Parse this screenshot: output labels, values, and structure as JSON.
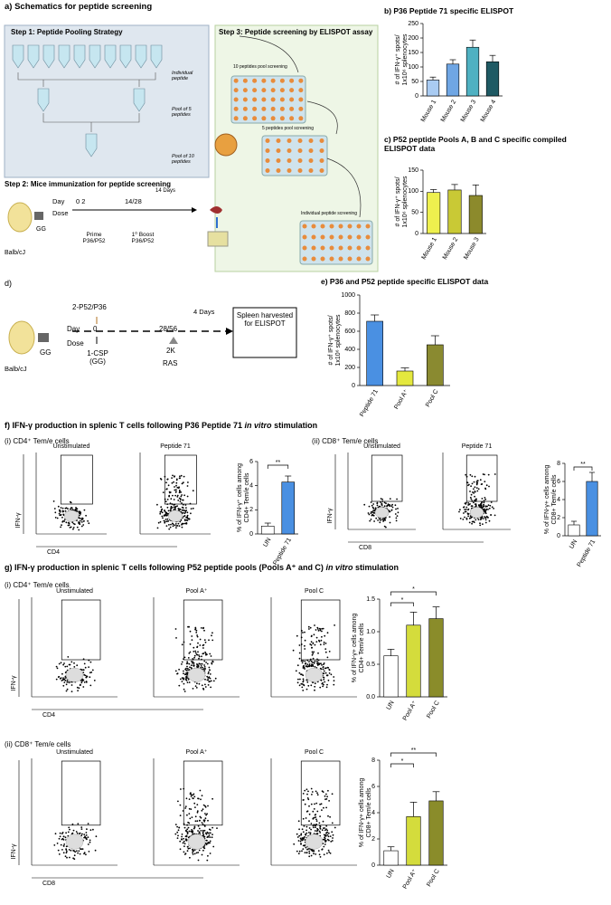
{
  "panels": {
    "a": {
      "title": "a) Schematics for peptide screening",
      "step1": "Step 1:  Peptide Pooling Strategy",
      "individual": "Individual peptide",
      "pool5": "Pool of 5 peptides",
      "pool10": "Pool of 10 peptides",
      "step2": "Step 2: Mice immunization for peptide screening",
      "day": "Day",
      "dose": "Dose",
      "days_0_2": "0 2",
      "day_boost": "14/28",
      "interval": "14 Days",
      "prime": "Prime P36/P52",
      "boost": "1⁰ Boost P36/P52",
      "mouse": "Balb/cJ",
      "gg": "GG",
      "step3": "Step 3: Peptide screening by ELISPOT assay",
      "screen10": "10 peptides pool screening",
      "screen5": "5 peptides pool screening",
      "screen_ind": "Individual peptide screening"
    },
    "d": {
      "title": "d)",
      "peptide": "2-P52/P36",
      "day": "Day",
      "day0": "0",
      "dose": "Dose",
      "csp": "1-CSP (GG)",
      "day_ras": "28/56",
      "interval": "4 Days",
      "dose_ras": "2K",
      "ras": "RAS",
      "harvest": "Spleen harvested for ELISPOT",
      "mouse": "Balb/cJ",
      "gg": "GG"
    },
    "f": {
      "title": [
        "f) IFN-γ production in splenic T cells following P36 Peptide 71 ",
        "in vitro",
        " stimulation"
      ],
      "subs": [
        {
          "label": "(i) CD4⁺ Tem/e cells",
          "plots": [
            "Unstimulated",
            "Peptide 71"
          ],
          "label_colors": [
            "#000000",
            "#4aa8e0"
          ],
          "y_label": "IFN-γ",
          "x_label": "CD4"
        },
        {
          "label": "(ii) CD8⁺ Tem/e cells",
          "plots": [
            "Unstimulated",
            "Peptide 71"
          ],
          "label_colors": [
            "#000000",
            "#4aa8e0"
          ],
          "y_label": "IFN-γ",
          "x_label": "CD8"
        }
      ]
    },
    "g": {
      "title": [
        "g) IFN-γ production in splenic T cells following P52 peptide pools (Pools A⁺ and C) ",
        "in vitro",
        " stimulation"
      ],
      "subs": [
        {
          "label": "(i) CD4⁺ Tem/e cells",
          "plots": [
            "Unstimulated",
            "Pool A⁺",
            "Pool C"
          ],
          "label_colors": [
            "#000000",
            "#b89a10",
            "#b89a10"
          ],
          "y_label": "IFN-γ",
          "x_label": "CD4"
        },
        {
          "label": "(ii) CD8⁺ Tem/e cells",
          "plots": [
            "Unstimulated",
            "Pool A⁺",
            "Pool C"
          ],
          "label_colors": [
            "#000000",
            "#b89a10",
            "#b89a10"
          ],
          "y_label": "IFN-γ",
          "x_label": "CD8"
        }
      ]
    }
  },
  "chart_data": [
    {
      "type": "bar",
      "title": "b) P36 Peptide 71 specific ELISPOT",
      "ylabel": [
        "# of IFN-γ⁺ spots/",
        "1x10⁶ splenocytes"
      ],
      "categories": [
        "Mouse 1",
        "Mouse 2",
        "Mouse 3",
        "Mouse 4"
      ],
      "values": [
        55,
        110,
        168,
        118
      ],
      "errors": [
        10,
        15,
        25,
        22
      ],
      "colors": [
        "#a9cbf2",
        "#6fa6e4",
        "#4fb1c2",
        "#1f5a64"
      ],
      "ylim": [
        0,
        250
      ],
      "yticks": [
        0,
        50,
        100,
        150,
        200,
        250
      ]
    },
    {
      "type": "bar",
      "title": "c) P52 peptide Pools A, B and C specific compiled ELISPOT data",
      "ylabel": [
        "# of IFN-γ⁺ spots/",
        "1x10⁶ splenocytes"
      ],
      "categories": [
        "Mouse 1",
        "Mouse 2",
        "Mouse 3"
      ],
      "values": [
        97,
        103,
        90
      ],
      "errors": [
        7,
        13,
        25
      ],
      "colors": [
        "#eef04e",
        "#c9c935",
        "#8c8a2c"
      ],
      "ylim": [
        0,
        150
      ],
      "yticks": [
        0,
        50,
        100,
        150
      ]
    },
    {
      "type": "bar",
      "title": "e) P36 and P52 peptide specific ELISPOT data",
      "ylabel": [
        "# of IFN-γ⁺ spots/",
        "1x10⁶ splenocytes"
      ],
      "categories": [
        "Peptide 71",
        "Pool A⁺",
        "Pool C"
      ],
      "values": [
        710,
        160,
        450
      ],
      "errors": [
        70,
        35,
        100
      ],
      "colors": [
        "#4a90e2",
        "#e4e83e",
        "#8a8a30"
      ],
      "ylim": [
        0,
        1000
      ],
      "yticks": [
        0,
        200,
        400,
        600,
        800,
        1000
      ]
    },
    {
      "type": "bar",
      "ylabel": [
        "% of IFN-γ⁺ cells among",
        "CD4+ Tem/e cells"
      ],
      "categories": [
        "UN",
        "Peptide 71"
      ],
      "values": [
        0.65,
        4.3
      ],
      "errors": [
        0.25,
        0.5
      ],
      "colors": [
        "#ffffff",
        "#4a90e2"
      ],
      "ylim": [
        0,
        6
      ],
      "yticks": [
        0,
        2,
        4,
        6
      ],
      "significance": [
        "**"
      ]
    },
    {
      "type": "bar",
      "ylabel": [
        "% of IFN-γ+ cells among",
        "CD8+ Tem/e cells"
      ],
      "categories": [
        "UN",
        "Peptide 71"
      ],
      "values": [
        1.2,
        6.0
      ],
      "errors": [
        0.4,
        1.0
      ],
      "colors": [
        "#ffffff",
        "#4a90e2"
      ],
      "ylim": [
        0,
        8
      ],
      "yticks": [
        0,
        2,
        4,
        6,
        8
      ],
      "significance": [
        "**"
      ]
    },
    {
      "type": "bar",
      "ylabel": [
        "% of IFN-γ+ cells among",
        "CD4+ Tem/e cells"
      ],
      "categories": [
        "UN",
        "Pool A⁺",
        "Pool C"
      ],
      "values": [
        0.63,
        1.1,
        1.2
      ],
      "errors": [
        0.1,
        0.2,
        0.18
      ],
      "colors": [
        "#ffffff",
        "#d4dc3c",
        "#8a8c2a"
      ],
      "ylim": [
        0,
        1.5
      ],
      "yticks": [
        {
          "value": 0,
          "label": "0.0"
        },
        0.5,
        {
          "value": 1,
          "label": "1.0"
        },
        1.5
      ],
      "significance": [
        "*",
        "*"
      ]
    },
    {
      "type": "bar",
      "ylabel": [
        "% of IFN-γ+ cells among",
        "CD8+ Tem/e cells"
      ],
      "categories": [
        "UN",
        "Pool A⁺",
        "Pool C"
      ],
      "values": [
        1.1,
        3.7,
        4.9
      ],
      "errors": [
        0.3,
        1.1,
        0.7
      ],
      "colors": [
        "#ffffff",
        "#d4dc3c",
        "#8a8c2a"
      ],
      "ylim": [
        0,
        8
      ],
      "yticks": [
        0,
        2,
        4,
        6,
        8
      ],
      "significance": [
        "*",
        "**"
      ]
    }
  ]
}
